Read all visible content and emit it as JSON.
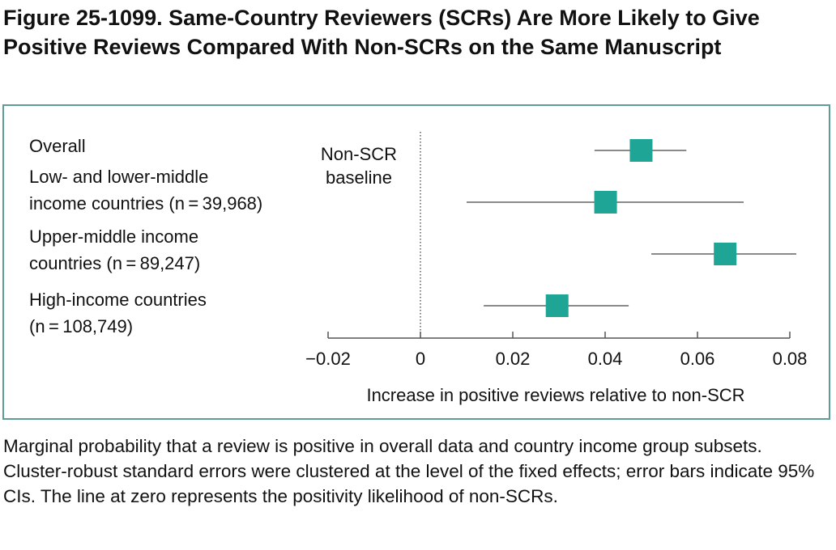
{
  "title": "Figure 25-1099. Same-Country Reviewers (SCRs) Are More Likely to Give Positive Reviews Compared With Non-SCRs on the Same Manuscript",
  "caption": "Marginal probability that a review is positive in overall data and country income group subsets. Cluster-robust standard errors were clustered at the level of the fixed effects; error bars indicate 95% CIs. The line at zero represents the positivity likelihood of non-SCRs.",
  "chart_data": {
    "type": "forest",
    "xlabel": "Increase in positive reviews relative to non-SCR",
    "xlim": [
      -0.02,
      0.08
    ],
    "xticks": [
      -0.02,
      0,
      0.02,
      0.04,
      0.06,
      0.08
    ],
    "xtick_labels": [
      "−0.02",
      "0",
      "0.02",
      "0.04",
      "0.06",
      "0.08"
    ],
    "reference_line": {
      "x": 0,
      "style": "dotted",
      "label_line1": "Non-SCR",
      "label_line2": "baseline"
    },
    "marker_color": "#1ea596",
    "rows": [
      {
        "label_line1": "Overall",
        "label_line2": "",
        "estimate": 0.0478,
        "ci": [
          0.0377,
          0.0576
        ]
      },
      {
        "label_line1": "Low- and lower-middle",
        "label_line2": "income countries (n = 39,968)",
        "estimate": 0.0401,
        "ci": [
          0.01,
          0.07
        ]
      },
      {
        "label_line1": "Upper-middle income",
        "label_line2": "countries (n = 89,247)",
        "estimate": 0.066,
        "ci": [
          0.05,
          0.0814
        ]
      },
      {
        "label_line1": "High-income countries",
        "label_line2": "(n = 108,749)",
        "estimate": 0.0296,
        "ci": [
          0.0137,
          0.0451
        ]
      }
    ]
  }
}
